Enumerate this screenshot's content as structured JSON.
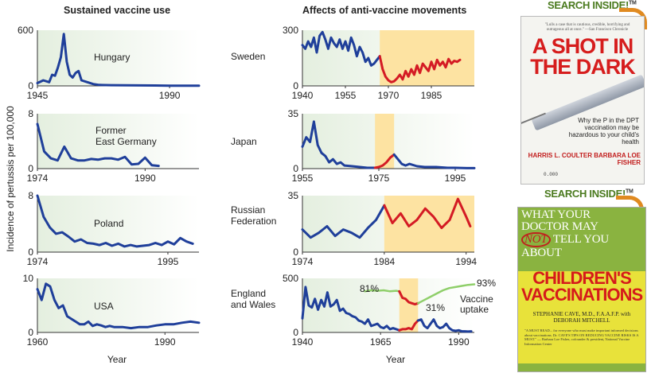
{
  "headers": {
    "left": "Sustained vaccine use",
    "right": "Affects of anti-vaccine movements"
  },
  "ylabel": "Incidence of pertussis per 100,000",
  "xlabel": "Year",
  "colors": {
    "line": "#1f3f9a",
    "anti_line": "#d41b24",
    "uptake": "#8fcf6a",
    "anti_band": "#fde3a2",
    "panel_bg": "#e4efdf"
  },
  "chart_data": [
    {
      "type": "line",
      "name": "Hungary",
      "label": "Hungary",
      "xlim": [
        1945,
        2000
      ],
      "ylim": [
        0,
        600
      ],
      "yticks": [
        "0",
        "600"
      ],
      "xticks": [
        {
          "v": 1945,
          "t": "1945"
        },
        {
          "v": 1990,
          "t": "1990"
        }
      ],
      "series": [
        {
          "color": "blue",
          "x": [
            1945,
            1947,
            1949,
            1950,
            1951,
            1952,
            1953,
            1954,
            1955,
            1956,
            1957,
            1958,
            1959,
            1960,
            1962,
            1964,
            1966,
            1970,
            1975,
            1980,
            1985,
            1990,
            1995,
            2000
          ],
          "y": [
            30,
            60,
            40,
            120,
            110,
            200,
            310,
            560,
            260,
            120,
            90,
            140,
            160,
            60,
            40,
            20,
            10,
            8,
            6,
            5,
            4,
            3,
            2,
            2
          ]
        }
      ]
    },
    {
      "type": "line",
      "name": "Sweden",
      "label": "Sweden",
      "xlim": [
        1940,
        2000
      ],
      "ylim": [
        0,
        300
      ],
      "yticks": [
        "0",
        "300"
      ],
      "xticks": [
        {
          "v": 1940,
          "t": "1940"
        },
        {
          "v": 1955,
          "t": "1955"
        },
        {
          "v": 1970,
          "t": "1970"
        },
        {
          "v": 1985,
          "t": "1985"
        }
      ],
      "band": [
        1967,
        2000
      ],
      "series": [
        {
          "color": "blue",
          "x": [
            1940,
            1941,
            1942,
            1943,
            1944,
            1945,
            1946,
            1947,
            1948,
            1949,
            1950,
            1951,
            1952,
            1953,
            1954,
            1955,
            1956,
            1957,
            1958,
            1959,
            1960,
            1961,
            1962,
            1963,
            1964,
            1965,
            1966,
            1967
          ],
          "y": [
            220,
            200,
            240,
            210,
            260,
            180,
            270,
            290,
            250,
            200,
            260,
            230,
            210,
            250,
            200,
            240,
            190,
            260,
            220,
            160,
            210,
            180,
            130,
            150,
            110,
            120,
            140,
            160
          ]
        },
        {
          "color": "red",
          "x": [
            1967,
            1968,
            1969,
            1970,
            1971,
            1972,
            1973,
            1974,
            1975,
            1976,
            1977,
            1978,
            1979,
            1980,
            1981,
            1982,
            1983,
            1984,
            1985,
            1986,
            1987,
            1988,
            1989,
            1990,
            1991,
            1992,
            1993,
            1994,
            1995
          ],
          "y": [
            160,
            90,
            50,
            30,
            20,
            25,
            40,
            60,
            35,
            80,
            50,
            90,
            60,
            110,
            70,
            120,
            100,
            80,
            130,
            90,
            140,
            110,
            130,
            100,
            145,
            120,
            135,
            130,
            140
          ]
        }
      ]
    },
    {
      "type": "line",
      "name": "Former East Germany",
      "label": "Former\nEast Germany",
      "xlim": [
        1974,
        1998
      ],
      "ylim": [
        0,
        8
      ],
      "yticks": [
        "0",
        "8"
      ],
      "xticks": [
        {
          "v": 1974,
          "t": "1974"
        },
        {
          "v": 1990,
          "t": "1990"
        }
      ],
      "series": [
        {
          "color": "blue",
          "x": [
            1974,
            1975,
            1976,
            1977,
            1978,
            1979,
            1980,
            1981,
            1982,
            1983,
            1984,
            1985,
            1986,
            1987,
            1988,
            1989,
            1990,
            1991,
            1992
          ],
          "y": [
            6.5,
            2.5,
            1.5,
            1.2,
            3.2,
            1.5,
            1.2,
            1.2,
            1.4,
            1.3,
            1.5,
            1.5,
            1.3,
            1.7,
            0.6,
            0.7,
            1.6,
            0.5,
            0.4
          ]
        }
      ]
    },
    {
      "type": "line",
      "name": "Japan",
      "label": "Japan",
      "xlim": [
        1955,
        2000
      ],
      "ylim": [
        0,
        35
      ],
      "yticks": [
        "0",
        "35"
      ],
      "xticks": [
        {
          "v": 1955,
          "t": "1955"
        },
        {
          "v": 1975,
          "t": "1975"
        },
        {
          "v": 1995,
          "t": "1995"
        }
      ],
      "band": [
        1974,
        1979
      ],
      "series": [
        {
          "color": "blue",
          "x": [
            1955,
            1956,
            1957,
            1958,
            1959,
            1960,
            1961,
            1962,
            1963,
            1964,
            1965,
            1966,
            1968,
            1970,
            1972,
            1974
          ],
          "y": [
            14,
            20,
            17,
            30,
            15,
            10,
            8,
            4,
            6,
            3,
            4,
            2,
            1.5,
            1,
            0.5,
            0.5
          ]
        },
        {
          "color": "red",
          "x": [
            1974,
            1975,
            1976,
            1977,
            1978,
            1979
          ],
          "y": [
            0.5,
            1,
            2,
            4,
            7,
            9
          ]
        },
        {
          "color": "blue",
          "x": [
            1979,
            1980,
            1981,
            1982,
            1983,
            1985,
            1987,
            1990,
            1993,
            1995,
            1998,
            2000
          ],
          "y": [
            9,
            6,
            3,
            2,
            3,
            1.5,
            1,
            1,
            0.5,
            0.5,
            0.3,
            0.3
          ]
        }
      ]
    },
    {
      "type": "line",
      "name": "Poland",
      "label": "Poland",
      "xlim": [
        1974,
        2000
      ],
      "ylim": [
        0,
        8
      ],
      "yticks": [
        "0",
        "8"
      ],
      "xticks": [
        {
          "v": 1974,
          "t": "1974"
        },
        {
          "v": 1995,
          "t": "1995"
        }
      ],
      "series": [
        {
          "color": "blue",
          "x": [
            1974,
            1975,
            1976,
            1977,
            1978,
            1979,
            1980,
            1981,
            1982,
            1983,
            1984,
            1985,
            1986,
            1987,
            1988,
            1989,
            1990,
            1991,
            1992,
            1993,
            1994,
            1995,
            1996,
            1997,
            1998,
            1999
          ],
          "y": [
            8,
            5,
            3.5,
            2.6,
            2.8,
            2.2,
            1.5,
            1.8,
            1.3,
            1.2,
            1.0,
            1.3,
            0.9,
            1.2,
            0.8,
            1.0,
            0.8,
            0.9,
            1.0,
            1.3,
            1.0,
            1.5,
            1.1,
            2.0,
            1.5,
            1.2
          ]
        }
      ]
    },
    {
      "type": "line",
      "name": "Russian Federation",
      "label": "Russian\nFederation",
      "xlim": [
        1974,
        1995
      ],
      "ylim": [
        0,
        35
      ],
      "yticks": [
        "0",
        "35"
      ],
      "xticks": [
        {
          "v": 1974,
          "t": "1974"
        },
        {
          "v": 1984,
          "t": "1984"
        },
        {
          "v": 1994,
          "t": "1994"
        }
      ],
      "band": [
        1984,
        1995
      ],
      "series": [
        {
          "color": "blue",
          "x": [
            1974,
            1975,
            1976,
            1977,
            1978,
            1979,
            1980,
            1981,
            1982,
            1983,
            1984
          ],
          "y": [
            14,
            9,
            12,
            16,
            10,
            14,
            12,
            9,
            15,
            20,
            29
          ]
        },
        {
          "color": "red",
          "x": [
            1984,
            1985,
            1986,
            1987,
            1988,
            1989,
            1990,
            1991,
            1992,
            1993,
            1994,
            1994.5
          ],
          "y": [
            29,
            18,
            24,
            16,
            20,
            27,
            22,
            15,
            20,
            33,
            22,
            16
          ]
        }
      ]
    },
    {
      "type": "line",
      "name": "USA",
      "label": "USA",
      "xlim": [
        1960,
        1998
      ],
      "ylim": [
        0,
        10
      ],
      "yticks": [
        "0",
        "10"
      ],
      "xticks": [
        {
          "v": 1960,
          "t": "1960"
        },
        {
          "v": 1990,
          "t": "1990"
        }
      ],
      "series": [
        {
          "color": "blue",
          "x": [
            1960,
            1961,
            1962,
            1963,
            1964,
            1965,
            1966,
            1967,
            1968,
            1969,
            1970,
            1971,
            1972,
            1973,
            1974,
            1975,
            1976,
            1977,
            1978,
            1980,
            1982,
            1984,
            1986,
            1988,
            1990,
            1992,
            1994,
            1996,
            1998
          ],
          "y": [
            8,
            6,
            9,
            8.5,
            6,
            4.5,
            5,
            3,
            2.5,
            2,
            1.5,
            1.5,
            2,
            1.2,
            1.5,
            1.3,
            1,
            1.2,
            1,
            1,
            0.8,
            1,
            1,
            1.3,
            1.5,
            1.5,
            1.8,
            2,
            1.8
          ]
        }
      ]
    },
    {
      "type": "line",
      "name": "England and Wales",
      "label": "England\nand Wales",
      "xlim": [
        1940,
        1995
      ],
      "ylim": [
        0,
        500
      ],
      "yticks": [
        "0",
        "500"
      ],
      "xticks": [
        {
          "v": 1940,
          "t": "1940"
        },
        {
          "v": 1965,
          "t": "1965"
        },
        {
          "v": 1990,
          "t": "1990"
        }
      ],
      "band": [
        1971,
        1977
      ],
      "annotations": [
        "81%",
        "31%",
        "93%",
        "Vaccine",
        "uptake"
      ],
      "series": [
        {
          "color": "blue",
          "x": [
            1940,
            1941,
            1942,
            1943,
            1944,
            1945,
            1946,
            1947,
            1948,
            1949,
            1950,
            1951,
            1952,
            1953,
            1954,
            1955,
            1956,
            1957,
            1958,
            1959,
            1960,
            1961,
            1962,
            1963,
            1964,
            1965,
            1966,
            1967,
            1968,
            1969,
            1970,
            1971
          ],
          "y": [
            130,
            420,
            250,
            230,
            310,
            210,
            300,
            240,
            370,
            240,
            260,
            300,
            200,
            220,
            180,
            170,
            150,
            140,
            110,
            100,
            80,
            120,
            60,
            70,
            80,
            50,
            40,
            60,
            30,
            40,
            30,
            20
          ]
        },
        {
          "color": "red",
          "x": [
            1971,
            1972,
            1973,
            1974,
            1975,
            1976,
            1977
          ],
          "y": [
            20,
            30,
            30,
            40,
            30,
            80,
            110
          ]
        },
        {
          "color": "blue",
          "x": [
            1977,
            1978,
            1979,
            1980,
            1981,
            1982,
            1983,
            1984,
            1985,
            1986,
            1987,
            1988,
            1989,
            1990,
            1991,
            1992,
            1993,
            1994
          ],
          "y": [
            110,
            120,
            60,
            40,
            80,
            120,
            60,
            40,
            50,
            80,
            40,
            20,
            15,
            20,
            10,
            10,
            8,
            10
          ]
        },
        {
          "color": "green",
          "name": "Vaccine uptake",
          "x": [
            1960,
            1962,
            1964,
            1966,
            1968,
            1970,
            1971
          ],
          "y": [
            380,
            390,
            385,
            390,
            380,
            385,
            380
          ]
        },
        {
          "color": "red",
          "x": [
            1971,
            1972,
            1973,
            1974,
            1975,
            1976,
            1977
          ],
          "y": [
            380,
            320,
            310,
            280,
            270,
            260,
            270
          ]
        },
        {
          "color": "green",
          "x": [
            1977,
            1979,
            1981,
            1983,
            1985,
            1987,
            1989,
            1991,
            1993,
            1995
          ],
          "y": [
            270,
            300,
            330,
            360,
            390,
            410,
            420,
            430,
            440,
            445
          ]
        }
      ]
    }
  ],
  "books": {
    "search_inside": "SEARCH INSIDE!",
    "tm": "TM",
    "book1": {
      "blurb": "\"Lulls a case that is cautious, credible, horrifying and outrageous all at once.\" —San Francisco Chronicle",
      "title": "A SHOT IN THE DARK",
      "subtitle": "Why the P in the DPT vaccination may be hazardous to your child's health",
      "authors": "HARRIS L. COULTER BARBARA LOE FISHER",
      "publisher": "0.000"
    },
    "book2": {
      "line1": "WHAT YOUR",
      "line2": "DOCTOR MAY",
      "not": "NOT",
      "line3": "TELL YOU",
      "line4": "ABOUT",
      "title": "CHILDREN'S VACCINATIONS",
      "authors": "STEPHANIE CAVE, M.D., F.A.A.F.P. with DEBORAH MITCHELL",
      "blurb": "\"A MUST READ... for everyone who must make important informed decisions about vaccinations. Dr. CAVE'S TIPS ON REDUCING VACCINE RISKS IS A MUST.\" — Barbara Loe Fisher, cofounder & president, National Vaccine Information Center"
    }
  }
}
